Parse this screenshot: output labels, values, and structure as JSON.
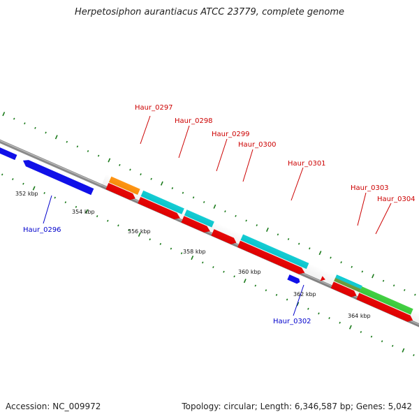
{
  "title": "Herpetosiphon aurantiacus ATCC 23779, complete genome",
  "footer": {
    "accession": "Accession: NC_009972",
    "summary": "Topology: circular; Length: 6,346,587 bp; Genes: 5,042"
  },
  "colors": {
    "forward_cds": "#ff0000",
    "reverse_cds": "#0000ff",
    "orange_feature": "#ff8c00",
    "cyan_feature": "#00c8d0",
    "green_feature": "#33cc33",
    "olive_feature": "#669933",
    "backbone": "#888888",
    "tick": "#1a7a1a",
    "forward_label": "#cc0000",
    "reverse_label": "#0000cc"
  },
  "scale_labels": [
    "352 kbp",
    "354 kbp",
    "356 kbp",
    "358 kbp",
    "360 kbp",
    "362 kbp",
    "364 kbp"
  ],
  "gene_labels": {
    "forward": [
      "Haur_0297",
      "Haur_0298",
      "Haur_0299",
      "Haur_0300",
      "Haur_0301",
      "Haur_0303",
      "Haur_0304"
    ],
    "reverse": [
      "Haur_0296",
      "Haur_0302"
    ]
  }
}
